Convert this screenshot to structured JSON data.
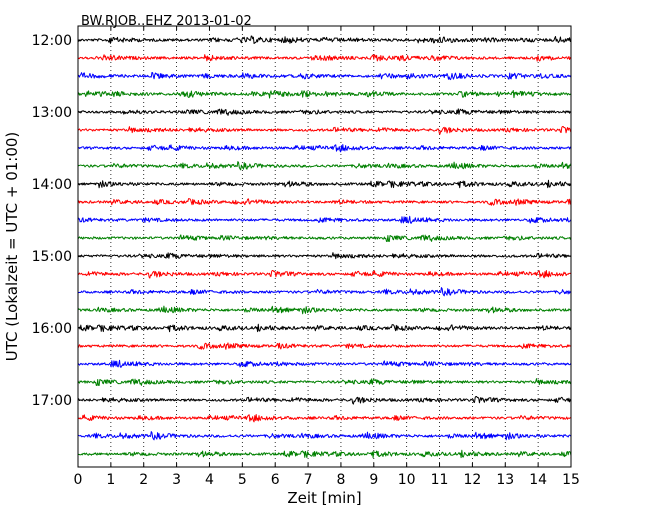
{
  "chart_data": {
    "type": "line",
    "title": "BW.RJOB..EHZ 2013-01-02",
    "xlabel": "Zeit  [min]",
    "ylabel": "UTC (Lokalzeit = UTC + 01:00)",
    "xlim": [
      0,
      15
    ],
    "x_ticks": [
      "0",
      "1",
      "2",
      "3",
      "4",
      "5",
      "6",
      "7",
      "8",
      "9",
      "10",
      "11",
      "12",
      "13",
      "14",
      "15"
    ],
    "y_ticks": [
      "12:00",
      "13:00",
      "14:00",
      "15:00",
      "16:00",
      "17:00"
    ],
    "grid": "vertical-dotted",
    "trace_start": "12:00",
    "trace_interval_min": 15,
    "trace_colors": [
      "#000000",
      "#ff0000",
      "#0000ff",
      "#008000"
    ],
    "series": [
      {
        "start": "12:00",
        "color": "#000000"
      },
      {
        "start": "12:15",
        "color": "#ff0000"
      },
      {
        "start": "12:30",
        "color": "#0000ff"
      },
      {
        "start": "12:45",
        "color": "#008000"
      },
      {
        "start": "13:00",
        "color": "#000000"
      },
      {
        "start": "13:15",
        "color": "#ff0000"
      },
      {
        "start": "13:30",
        "color": "#0000ff"
      },
      {
        "start": "13:45",
        "color": "#008000"
      },
      {
        "start": "14:00",
        "color": "#000000"
      },
      {
        "start": "14:15",
        "color": "#ff0000"
      },
      {
        "start": "14:30",
        "color": "#0000ff"
      },
      {
        "start": "14:45",
        "color": "#008000"
      },
      {
        "start": "15:00",
        "color": "#000000"
      },
      {
        "start": "15:15",
        "color": "#ff0000"
      },
      {
        "start": "15:30",
        "color": "#0000ff"
      },
      {
        "start": "15:45",
        "color": "#008000"
      },
      {
        "start": "16:00",
        "color": "#000000"
      },
      {
        "start": "16:15",
        "color": "#ff0000"
      },
      {
        "start": "16:30",
        "color": "#0000ff"
      },
      {
        "start": "16:45",
        "color": "#008000"
      },
      {
        "start": "17:00",
        "color": "#000000"
      },
      {
        "start": "17:15",
        "color": "#ff0000"
      },
      {
        "start": "17:30",
        "color": "#0000ff"
      },
      {
        "start": "17:45",
        "color": "#008000"
      }
    ]
  }
}
